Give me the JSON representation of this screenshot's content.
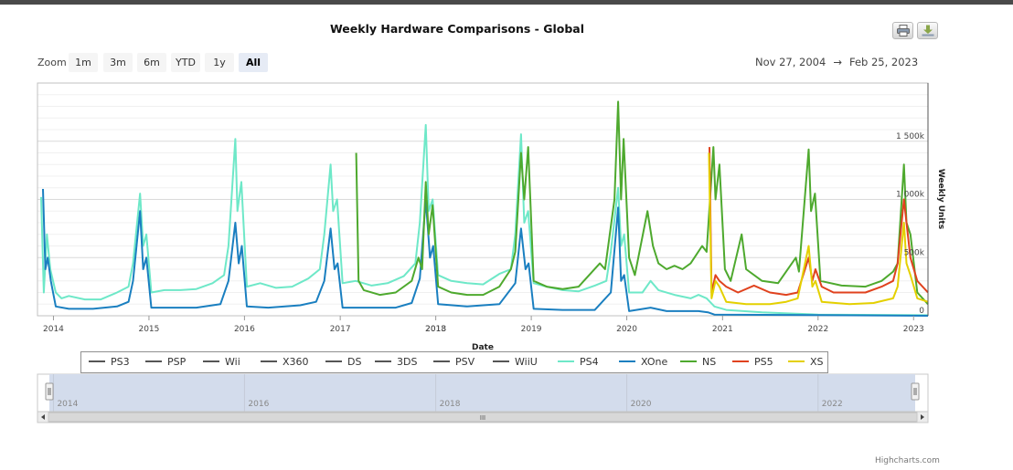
{
  "header": {
    "title": "Weekly Hardware Comparisons - Global",
    "print_icon": "printer-icon",
    "download_icon": "download-icon"
  },
  "zoom": {
    "label": "Zoom",
    "buttons": [
      "1m",
      "3m",
      "6m",
      "YTD",
      "1y",
      "All"
    ],
    "active": "All"
  },
  "range": {
    "from": "Nov 27, 2004",
    "arrow": "→",
    "to": "Feb 25, 2023"
  },
  "credit": "Highcharts.com",
  "navigator": {
    "labels": [
      "2014",
      "2016",
      "2018",
      "2020",
      "2022"
    ],
    "scroll_grip": "III"
  },
  "colors": {
    "PS3": "#555555",
    "PSP": "#555555",
    "Wii": "#555555",
    "X360": "#555555",
    "DS": "#555555",
    "3DS": "#555555",
    "PSV": "#555555",
    "WiiU": "#555555",
    "PS4": "#6ee8c8",
    "XOne": "#1a7fc0",
    "NS": "#4ea92e",
    "PS5": "#e0421e",
    "XS": "#e4d000"
  },
  "chart_data": {
    "type": "line",
    "title": "Weekly Hardware Comparisons - Global",
    "xlabel": "Date",
    "ylabel": "Weekly Units",
    "xlim": [
      "2013-11",
      "2023-02"
    ],
    "ylim": [
      0,
      2000000
    ],
    "x_ticks": [
      "2014",
      "2015",
      "2016",
      "2017",
      "2018",
      "2019",
      "2020",
      "2021",
      "2022",
      "2023"
    ],
    "x_tick_overlap": "2013",
    "y_ticks": [
      "0",
      "500k",
      "1 000k",
      "1 500k"
    ],
    "y_tick_values": [
      0,
      500000,
      1000000,
      1500000
    ],
    "legend": [
      "PS3",
      "PSP",
      "Wii",
      "X360",
      "DS",
      "3DS",
      "PSV",
      "WiiU",
      "PS4",
      "XOne",
      "NS",
      "PS5",
      "XS"
    ],
    "legend_position": "bottom",
    "grid": true,
    "series": [
      {
        "name": "PS4",
        "points": [
          [
            "2013-11-15",
            1020000
          ],
          [
            "2013-11-25",
            200000
          ],
          [
            "2013-12-07",
            700000
          ],
          [
            "2013-12-20",
            400000
          ],
          [
            "2014-01-10",
            200000
          ],
          [
            "2014-02-01",
            150000
          ],
          [
            "2014-03-01",
            170000
          ],
          [
            "2014-05-01",
            140000
          ],
          [
            "2014-07-01",
            140000
          ],
          [
            "2014-09-01",
            200000
          ],
          [
            "2014-10-15",
            250000
          ],
          [
            "2014-11-01",
            450000
          ],
          [
            "2014-11-28",
            1050000
          ],
          [
            "2014-12-10",
            600000
          ],
          [
            "2014-12-22",
            700000
          ],
          [
            "2015-01-10",
            200000
          ],
          [
            "2015-03-01",
            220000
          ],
          [
            "2015-05-01",
            220000
          ],
          [
            "2015-07-01",
            230000
          ],
          [
            "2015-09-01",
            280000
          ],
          [
            "2015-10-15",
            350000
          ],
          [
            "2015-11-01",
            600000
          ],
          [
            "2015-11-27",
            1520000
          ],
          [
            "2015-12-05",
            900000
          ],
          [
            "2015-12-20",
            1150000
          ],
          [
            "2016-01-10",
            250000
          ],
          [
            "2016-03-01",
            280000
          ],
          [
            "2016-05-01",
            240000
          ],
          [
            "2016-07-01",
            250000
          ],
          [
            "2016-09-01",
            320000
          ],
          [
            "2016-10-15",
            400000
          ],
          [
            "2016-11-01",
            700000
          ],
          [
            "2016-11-25",
            1300000
          ],
          [
            "2016-12-05",
            900000
          ],
          [
            "2016-12-20",
            1000000
          ],
          [
            "2017-01-10",
            280000
          ],
          [
            "2017-03-01",
            300000
          ],
          [
            "2017-05-01",
            260000
          ],
          [
            "2017-07-01",
            280000
          ],
          [
            "2017-09-01",
            340000
          ],
          [
            "2017-10-15",
            450000
          ],
          [
            "2017-11-01",
            800000
          ],
          [
            "2017-11-24",
            1640000
          ],
          [
            "2017-12-05",
            900000
          ],
          [
            "2017-12-20",
            1000000
          ],
          [
            "2018-01-10",
            350000
          ],
          [
            "2018-03-01",
            300000
          ],
          [
            "2018-05-01",
            280000
          ],
          [
            "2018-07-01",
            270000
          ],
          [
            "2018-09-01",
            360000
          ],
          [
            "2018-10-15",
            400000
          ],
          [
            "2018-11-01",
            700000
          ],
          [
            "2018-11-23",
            1560000
          ],
          [
            "2018-12-05",
            800000
          ],
          [
            "2018-12-20",
            900000
          ],
          [
            "2019-01-10",
            280000
          ],
          [
            "2019-03-01",
            250000
          ],
          [
            "2019-05-01",
            220000
          ],
          [
            "2019-07-01",
            210000
          ],
          [
            "2019-09-01",
            260000
          ],
          [
            "2019-10-15",
            300000
          ],
          [
            "2019-11-01",
            550000
          ],
          [
            "2019-11-29",
            1100000
          ],
          [
            "2019-12-10",
            600000
          ],
          [
            "2019-12-22",
            700000
          ],
          [
            "2020-01-10",
            200000
          ],
          [
            "2020-03-01",
            200000
          ],
          [
            "2020-04-01",
            300000
          ],
          [
            "2020-05-01",
            220000
          ],
          [
            "2020-07-01",
            180000
          ],
          [
            "2020-09-01",
            150000
          ],
          [
            "2020-10-01",
            180000
          ],
          [
            "2020-11-01",
            150000
          ],
          [
            "2020-12-01",
            80000
          ],
          [
            "2021-01-15",
            50000
          ],
          [
            "2021-06-01",
            30000
          ],
          [
            "2022-01-01",
            10000
          ],
          [
            "2023-02-25",
            5000
          ]
        ]
      },
      {
        "name": "XOne",
        "points": [
          [
            "2013-11-22",
            1090000
          ],
          [
            "2013-12-01",
            400000
          ],
          [
            "2013-12-10",
            500000
          ],
          [
            "2013-12-22",
            300000
          ],
          [
            "2014-01-10",
            80000
          ],
          [
            "2014-03-01",
            60000
          ],
          [
            "2014-06-01",
            60000
          ],
          [
            "2014-09-01",
            80000
          ],
          [
            "2014-10-15",
            120000
          ],
          [
            "2014-11-01",
            300000
          ],
          [
            "2014-11-28",
            900000
          ],
          [
            "2014-12-10",
            400000
          ],
          [
            "2014-12-22",
            500000
          ],
          [
            "2015-01-10",
            70000
          ],
          [
            "2015-03-01",
            70000
          ],
          [
            "2015-07-01",
            70000
          ],
          [
            "2015-10-01",
            100000
          ],
          [
            "2015-11-01",
            300000
          ],
          [
            "2015-11-27",
            800000
          ],
          [
            "2015-12-10",
            450000
          ],
          [
            "2015-12-22",
            600000
          ],
          [
            "2016-01-10",
            80000
          ],
          [
            "2016-04-01",
            70000
          ],
          [
            "2016-08-01",
            90000
          ],
          [
            "2016-10-01",
            120000
          ],
          [
            "2016-11-01",
            300000
          ],
          [
            "2016-11-25",
            750000
          ],
          [
            "2016-12-10",
            400000
          ],
          [
            "2016-12-22",
            450000
          ],
          [
            "2017-01-10",
            70000
          ],
          [
            "2017-04-01",
            70000
          ],
          [
            "2017-08-01",
            70000
          ],
          [
            "2017-10-01",
            110000
          ],
          [
            "2017-11-01",
            320000
          ],
          [
            "2017-11-24",
            1000000
          ],
          [
            "2017-12-10",
            500000
          ],
          [
            "2017-12-22",
            600000
          ],
          [
            "2018-01-10",
            100000
          ],
          [
            "2018-05-01",
            80000
          ],
          [
            "2018-09-01",
            100000
          ],
          [
            "2018-11-01",
            280000
          ],
          [
            "2018-11-23",
            750000
          ],
          [
            "2018-12-10",
            400000
          ],
          [
            "2018-12-22",
            450000
          ],
          [
            "2019-01-10",
            60000
          ],
          [
            "2019-05-01",
            50000
          ],
          [
            "2019-09-01",
            50000
          ],
          [
            "2019-11-01",
            200000
          ],
          [
            "2019-11-29",
            930000
          ],
          [
            "2019-12-10",
            300000
          ],
          [
            "2019-12-22",
            350000
          ],
          [
            "2020-01-10",
            40000
          ],
          [
            "2020-04-01",
            70000
          ],
          [
            "2020-06-01",
            40000
          ],
          [
            "2020-10-01",
            40000
          ],
          [
            "2020-11-06",
            30000
          ],
          [
            "2020-12-01",
            10000
          ],
          [
            "2023-02-25",
            0
          ]
        ]
      },
      {
        "name": "NS",
        "points": [
          [
            "2017-03-03",
            1400000
          ],
          [
            "2017-03-12",
            300000
          ],
          [
            "2017-04-01",
            220000
          ],
          [
            "2017-06-01",
            180000
          ],
          [
            "2017-08-01",
            200000
          ],
          [
            "2017-10-01",
            300000
          ],
          [
            "2017-10-27",
            500000
          ],
          [
            "2017-11-10",
            400000
          ],
          [
            "2017-11-24",
            1150000
          ],
          [
            "2017-12-05",
            700000
          ],
          [
            "2017-12-20",
            950000
          ],
          [
            "2018-01-10",
            250000
          ],
          [
            "2018-03-01",
            200000
          ],
          [
            "2018-05-01",
            180000
          ],
          [
            "2018-07-01",
            180000
          ],
          [
            "2018-09-01",
            250000
          ],
          [
            "2018-10-15",
            400000
          ],
          [
            "2018-11-01",
            550000
          ],
          [
            "2018-11-23",
            1400000
          ],
          [
            "2018-12-05",
            1000000
          ],
          [
            "2018-12-20",
            1450000
          ],
          [
            "2019-01-10",
            300000
          ],
          [
            "2019-03-01",
            250000
          ],
          [
            "2019-05-01",
            230000
          ],
          [
            "2019-07-01",
            250000
          ],
          [
            "2019-09-20",
            450000
          ],
          [
            "2019-10-10",
            400000
          ],
          [
            "2019-11-15",
            1000000
          ],
          [
            "2019-11-29",
            1840000
          ],
          [
            "2019-12-10",
            1000000
          ],
          [
            "2019-12-20",
            1520000
          ],
          [
            "2020-01-10",
            500000
          ],
          [
            "2020-02-01",
            350000
          ],
          [
            "2020-03-20",
            900000
          ],
          [
            "2020-04-10",
            600000
          ],
          [
            "2020-05-01",
            450000
          ],
          [
            "2020-06-01",
            400000
          ],
          [
            "2020-07-01",
            430000
          ],
          [
            "2020-08-01",
            400000
          ],
          [
            "2020-09-01",
            450000
          ],
          [
            "2020-10-15",
            600000
          ],
          [
            "2020-11-01",
            550000
          ],
          [
            "2020-11-27",
            1450000
          ],
          [
            "2020-12-05",
            1000000
          ],
          [
            "2020-12-20",
            1300000
          ],
          [
            "2021-01-10",
            400000
          ],
          [
            "2021-02-01",
            300000
          ],
          [
            "2021-03-15",
            700000
          ],
          [
            "2021-04-01",
            400000
          ],
          [
            "2021-06-01",
            300000
          ],
          [
            "2021-08-01",
            280000
          ],
          [
            "2021-10-08",
            500000
          ],
          [
            "2021-10-20",
            380000
          ],
          [
            "2021-11-26",
            1430000
          ],
          [
            "2021-12-05",
            900000
          ],
          [
            "2021-12-20",
            1050000
          ],
          [
            "2022-01-10",
            300000
          ],
          [
            "2022-04-01",
            260000
          ],
          [
            "2022-07-01",
            250000
          ],
          [
            "2022-09-01",
            300000
          ],
          [
            "2022-10-15",
            380000
          ],
          [
            "2022-11-01",
            450000
          ],
          [
            "2022-11-25",
            1300000
          ],
          [
            "2022-12-05",
            800000
          ],
          [
            "2022-12-20",
            700000
          ],
          [
            "2023-01-15",
            200000
          ],
          [
            "2023-02-25",
            100000
          ]
        ]
      },
      {
        "name": "PS5",
        "points": [
          [
            "2020-11-12",
            1450000
          ],
          [
            "2020-11-20",
            200000
          ],
          [
            "2020-12-05",
            350000
          ],
          [
            "2020-12-20",
            300000
          ],
          [
            "2021-01-15",
            250000
          ],
          [
            "2021-03-01",
            200000
          ],
          [
            "2021-05-01",
            260000
          ],
          [
            "2021-07-01",
            200000
          ],
          [
            "2021-09-01",
            180000
          ],
          [
            "2021-10-15",
            200000
          ],
          [
            "2021-11-26",
            500000
          ],
          [
            "2021-12-10",
            300000
          ],
          [
            "2021-12-22",
            400000
          ],
          [
            "2022-01-15",
            250000
          ],
          [
            "2022-03-01",
            200000
          ],
          [
            "2022-05-01",
            200000
          ],
          [
            "2022-07-01",
            200000
          ],
          [
            "2022-09-01",
            250000
          ],
          [
            "2022-10-15",
            300000
          ],
          [
            "2022-11-01",
            450000
          ],
          [
            "2022-11-25",
            1000000
          ],
          [
            "2022-12-05",
            800000
          ],
          [
            "2022-12-20",
            500000
          ],
          [
            "2023-01-15",
            300000
          ],
          [
            "2023-02-25",
            200000
          ]
        ]
      },
      {
        "name": "XS",
        "points": [
          [
            "2020-11-10",
            1400000
          ],
          [
            "2020-11-20",
            150000
          ],
          [
            "2020-12-05",
            300000
          ],
          [
            "2020-12-20",
            250000
          ],
          [
            "2021-01-15",
            120000
          ],
          [
            "2021-04-01",
            100000
          ],
          [
            "2021-07-01",
            100000
          ],
          [
            "2021-09-01",
            120000
          ],
          [
            "2021-10-15",
            150000
          ],
          [
            "2021-11-26",
            600000
          ],
          [
            "2021-12-10",
            250000
          ],
          [
            "2021-12-22",
            300000
          ],
          [
            "2022-01-15",
            120000
          ],
          [
            "2022-05-01",
            100000
          ],
          [
            "2022-08-01",
            110000
          ],
          [
            "2022-10-15",
            150000
          ],
          [
            "2022-11-01",
            250000
          ],
          [
            "2022-11-25",
            800000
          ],
          [
            "2022-12-05",
            450000
          ],
          [
            "2022-12-20",
            350000
          ],
          [
            "2023-01-15",
            150000
          ],
          [
            "2023-02-25",
            120000
          ]
        ]
      }
    ]
  }
}
